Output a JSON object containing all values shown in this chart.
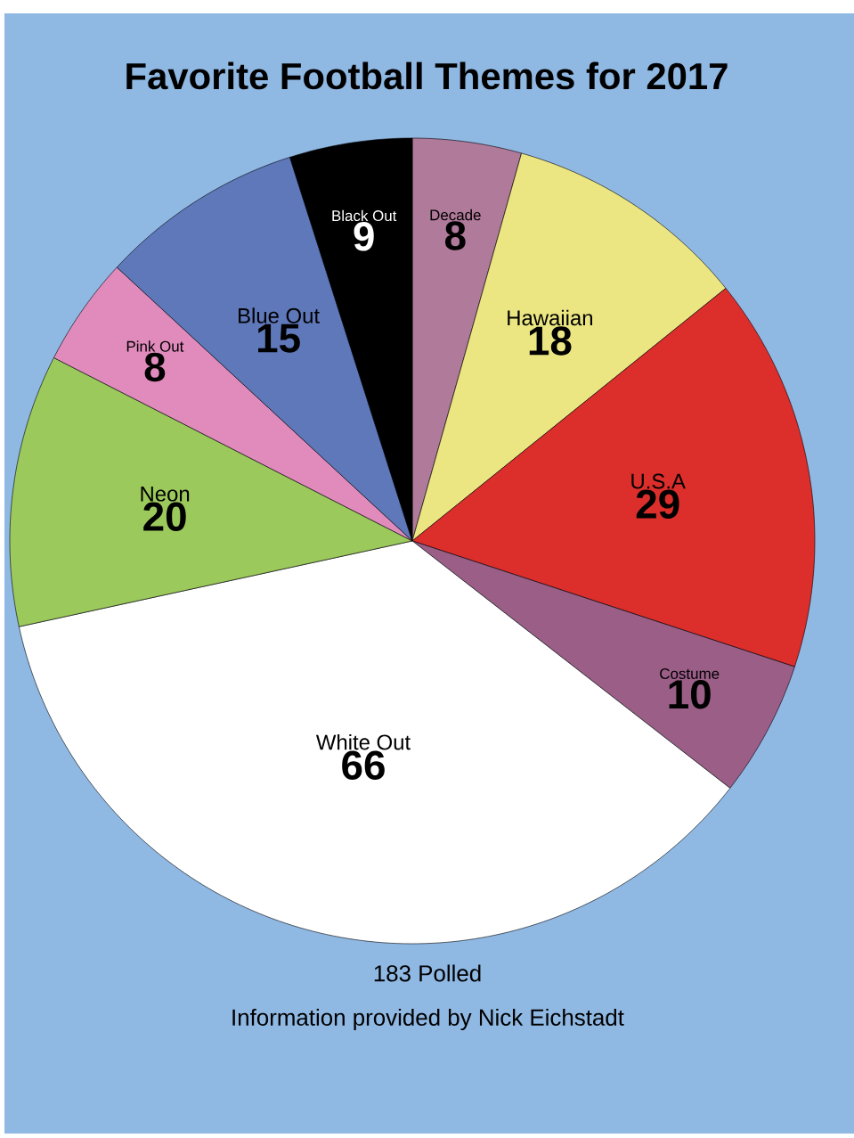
{
  "chart_data": {
    "type": "pie",
    "title": "Favorite Football Themes for 2017",
    "categories": [
      "Decade",
      "Hawaiian",
      "U.S.A",
      "Costume",
      "White Out",
      "Neon",
      "Pink Out",
      "Blue Out",
      "Black Out"
    ],
    "values": [
      8,
      18,
      29,
      10,
      66,
      20,
      8,
      15,
      9
    ],
    "colors": [
      "#b07a9a",
      "#ebe681",
      "#dc2e2b",
      "#9a5e87",
      "#ffffff",
      "#9cc95c",
      "#e08bbc",
      "#5f78ba",
      "#000000"
    ],
    "data_labels": true,
    "annotations": [
      "183 Polled",
      "Information provided by Nick Eichstadt"
    ]
  }
}
